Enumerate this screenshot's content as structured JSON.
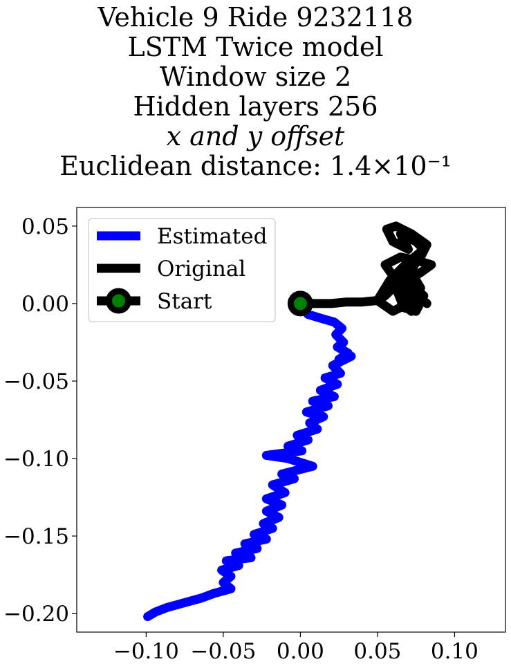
{
  "chart_data": {
    "type": "line",
    "title_lines": [
      "Vehicle 9 Ride 9232118",
      "LSTM Twice model",
      "Window size 2",
      "Hidden layers 256",
      "x and y offset",
      "Euclidean distance: 1.4×10⁻¹"
    ],
    "xlim": [
      -0.145,
      0.133
    ],
    "ylim": [
      -0.212,
      0.062
    ],
    "x_ticks": [
      -0.1,
      -0.05,
      0.0,
      0.05,
      0.1
    ],
    "x_tick_labels": [
      "−0.10",
      "−0.05",
      "0.00",
      "0.05",
      "0.10"
    ],
    "y_ticks": [
      0.05,
      0.0,
      -0.05,
      -0.1,
      -0.15,
      -0.2
    ],
    "y_tick_labels": [
      "0.05",
      "0.00",
      "−0.05",
      "−0.10",
      "−0.15",
      "−0.20"
    ],
    "grid": false,
    "legend_position": "upper-left",
    "series": [
      {
        "name": "Estimated",
        "color": "#0000ff",
        "x": [
          0.0,
          0.005,
          0.015,
          0.022,
          0.027,
          0.023,
          0.028,
          0.024,
          0.031,
          0.025,
          0.033,
          0.021,
          0.026,
          0.016,
          0.024,
          0.013,
          0.022,
          0.008,
          0.018,
          0.004,
          0.015,
          0.006,
          0.011,
          -0.002,
          0.005,
          -0.008,
          0.001,
          -0.022,
          -0.008,
          0.008,
          -0.012,
          -0.004,
          -0.018,
          -0.01,
          -0.022,
          -0.012,
          -0.022,
          -0.014,
          -0.024,
          -0.018,
          -0.03,
          -0.022,
          -0.036,
          -0.028,
          -0.042,
          -0.032,
          -0.048,
          -0.04,
          -0.051,
          -0.045,
          -0.05,
          -0.045,
          -0.056,
          -0.064,
          -0.075,
          -0.086,
          -0.094,
          -0.099
        ],
        "y": [
          0.0,
          -0.007,
          -0.01,
          -0.012,
          -0.016,
          -0.02,
          -0.025,
          -0.028,
          -0.032,
          -0.036,
          -0.034,
          -0.04,
          -0.045,
          -0.048,
          -0.052,
          -0.056,
          -0.06,
          -0.063,
          -0.066,
          -0.07,
          -0.073,
          -0.077,
          -0.081,
          -0.085,
          -0.088,
          -0.092,
          -0.095,
          -0.098,
          -0.1,
          -0.105,
          -0.11,
          -0.113,
          -0.117,
          -0.122,
          -0.126,
          -0.13,
          -0.134,
          -0.138,
          -0.142,
          -0.145,
          -0.149,
          -0.152,
          -0.155,
          -0.158,
          -0.161,
          -0.164,
          -0.166,
          -0.169,
          -0.172,
          -0.176,
          -0.18,
          -0.184,
          -0.187,
          -0.19,
          -0.193,
          -0.196,
          -0.199,
          -0.202
        ]
      },
      {
        "name": "Original",
        "color": "#000000",
        "x": [
          0.0,
          0.01,
          0.02,
          0.03,
          0.04,
          0.05,
          0.055,
          0.06,
          0.058,
          0.065,
          0.07,
          0.075,
          0.068,
          0.072,
          0.078,
          0.07,
          0.065,
          0.075,
          0.08,
          0.072,
          0.06,
          0.055,
          0.065,
          0.075,
          0.085,
          0.078,
          0.07,
          0.068,
          0.074,
          0.06,
          0.05,
          0.058,
          0.068,
          0.08,
          0.075,
          0.065,
          0.07,
          0.06,
          0.056,
          0.062,
          0.072,
          0.082,
          0.078,
          0.07,
          0.062,
          0.066,
          0.072,
          0.076,
          0.082
        ],
        "y": [
          0.0,
          0.0,
          0.0,
          0.001,
          0.001,
          0.002,
          0.005,
          0.01,
          0.013,
          0.015,
          0.018,
          0.02,
          0.022,
          0.02,
          0.01,
          0.005,
          -0.002,
          -0.005,
          0.005,
          0.012,
          0.018,
          0.025,
          0.03,
          0.028,
          0.025,
          0.02,
          0.015,
          0.008,
          0.002,
          -0.005,
          0.002,
          0.015,
          0.025,
          0.035,
          0.04,
          0.045,
          0.035,
          0.04,
          0.048,
          0.05,
          0.045,
          0.038,
          0.03,
          0.02,
          0.01,
          0.0,
          -0.005,
          0.005,
          0.0
        ]
      }
    ],
    "start_marker": {
      "name": "Start",
      "x": 0.0,
      "y": 0.0,
      "edge_color": "#000000",
      "face_color": "#008000"
    }
  }
}
